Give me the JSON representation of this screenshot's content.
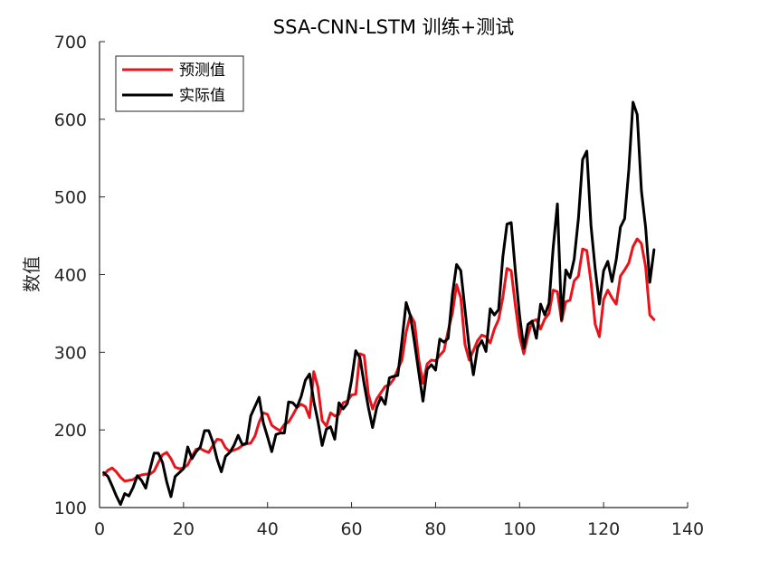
{
  "chart_data": {
    "type": "line",
    "title": "SSA-CNN-LSTM 训练+测试",
    "xlabel": "",
    "ylabel": "数值",
    "xlim": [
      0,
      140
    ],
    "ylim": [
      100,
      700
    ],
    "xticks": [
      0,
      20,
      40,
      60,
      80,
      100,
      120,
      140
    ],
    "yticks": [
      100,
      200,
      300,
      400,
      500,
      600,
      700
    ],
    "grid": false,
    "legend_position": "top-left",
    "series": [
      {
        "name": "预测值",
        "color": "#e8141b",
        "x": [
          1,
          2,
          3,
          4,
          5,
          6,
          7,
          8,
          9,
          10,
          11,
          12,
          13,
          14,
          15,
          16,
          17,
          18,
          19,
          20,
          21,
          22,
          23,
          24,
          25,
          26,
          27,
          28,
          29,
          30,
          31,
          32,
          33,
          34,
          35,
          36,
          37,
          38,
          39,
          40,
          41,
          42,
          43,
          44,
          45,
          46,
          47,
          48,
          49,
          50,
          51,
          52,
          53,
          54,
          55,
          56,
          57,
          58,
          59,
          60,
          61,
          62,
          63,
          64,
          65,
          66,
          67,
          68,
          69,
          70,
          71,
          72,
          73,
          74,
          75,
          76,
          77,
          78,
          79,
          80,
          81,
          82,
          83,
          84,
          85,
          86,
          87,
          88,
          89,
          90,
          91,
          92,
          93,
          94,
          95,
          96,
          97,
          98,
          99,
          100,
          101,
          102,
          103,
          104,
          105,
          106,
          107,
          108,
          109,
          110,
          111,
          112,
          113,
          114,
          115,
          116,
          117,
          118,
          119,
          120,
          121,
          122,
          123,
          124,
          125,
          126,
          127,
          128,
          129,
          130,
          131,
          132
        ],
        "values": [
          142,
          148,
          151,
          146,
          139,
          134,
          135,
          136,
          140,
          142,
          143,
          143,
          147,
          158,
          168,
          171,
          163,
          152,
          150,
          151,
          155,
          166,
          175,
          176,
          173,
          171,
          180,
          188,
          187,
          177,
          172,
          174,
          176,
          180,
          182,
          183,
          192,
          210,
          222,
          220,
          206,
          202,
          199,
          207,
          210,
          219,
          229,
          233,
          230,
          216,
          275,
          255,
          212,
          205,
          222,
          218,
          220,
          235,
          237,
          245,
          246,
          298,
          296,
          246,
          227,
          240,
          248,
          256,
          258,
          265,
          278,
          290,
          326,
          348,
          338,
          290,
          260,
          285,
          290,
          289,
          296,
          302,
          328,
          350,
          387,
          370,
          310,
          290,
          302,
          315,
          322,
          320,
          312,
          330,
          342,
          370,
          408,
          405,
          360,
          320,
          298,
          322,
          340,
          342,
          330,
          343,
          350,
          380,
          378,
          340,
          365,
          367,
          392,
          398,
          433,
          431,
          390,
          336,
          320,
          368,
          380,
          370,
          362,
          398,
          406,
          415,
          436,
          446,
          440,
          410,
          348,
          342
        ]
      },
      {
        "name": "实际值",
        "color": "#000000",
        "x": [
          1,
          2,
          3,
          4,
          5,
          6,
          7,
          8,
          9,
          10,
          11,
          12,
          13,
          14,
          15,
          16,
          17,
          18,
          19,
          20,
          21,
          22,
          23,
          24,
          25,
          26,
          27,
          28,
          29,
          30,
          31,
          32,
          33,
          34,
          35,
          36,
          37,
          38,
          39,
          40,
          41,
          42,
          43,
          44,
          45,
          46,
          47,
          48,
          49,
          50,
          51,
          52,
          53,
          54,
          55,
          56,
          57,
          58,
          59,
          60,
          61,
          62,
          63,
          64,
          65,
          66,
          67,
          68,
          69,
          70,
          71,
          72,
          73,
          74,
          75,
          76,
          77,
          78,
          79,
          80,
          81,
          82,
          83,
          84,
          85,
          86,
          87,
          88,
          89,
          90,
          91,
          92,
          93,
          94,
          95,
          96,
          97,
          98,
          99,
          100,
          101,
          102,
          103,
          104,
          105,
          106,
          107,
          108,
          109,
          110,
          111,
          112,
          113,
          114,
          115,
          116,
          117,
          118,
          119,
          120,
          121,
          122,
          123,
          124,
          125,
          126,
          127,
          128,
          129,
          130,
          131,
          132
        ],
        "values": [
          145,
          140,
          128,
          115,
          104,
          118,
          115,
          126,
          141,
          135,
          125,
          149,
          170,
          170,
          158,
          133,
          114,
          140,
          145,
          150,
          178,
          163,
          172,
          178,
          199,
          199,
          184,
          162,
          146,
          166,
          171,
          180,
          193,
          181,
          183,
          218,
          230,
          242,
          209,
          191,
          172,
          194,
          196,
          196,
          236,
          235,
          229,
          243,
          264,
          272,
          237,
          211,
          180,
          201,
          204,
          188,
          235,
          227,
          234,
          264,
          302,
          293,
          259,
          229,
          203,
          229,
          242,
          233,
          267,
          269,
          270,
          315,
          364,
          347,
          312,
          274,
          237,
          278,
          284,
          277,
          317,
          313,
          318,
          374,
          413,
          405,
          355,
          306,
          271,
          306,
          315,
          301,
          356,
          348,
          355,
          422,
          465,
          467,
          404,
          347,
          305,
          336,
          340,
          318,
          362,
          348,
          363,
          435,
          491,
          342,
          406,
          396,
          420,
          472,
          548,
          559,
          463,
          407,
          362,
          405,
          417,
          391,
          419,
          461,
          472,
          535,
          622,
          606,
          508,
          461,
          390,
          432
        ]
      }
    ]
  }
}
